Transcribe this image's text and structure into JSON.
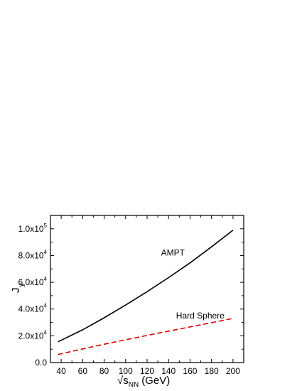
{
  "chart_data": {
    "type": "line",
    "xlabel": "√s",
    "xlabel_sub": "NN",
    "xlabel_unit": "(GeV)",
    "ylabel": "J",
    "ylabel_sub": "y",
    "xlim": [
      30,
      210
    ],
    "ylim": [
      0,
      110000
    ],
    "x_ticks": [
      40,
      60,
      80,
      100,
      120,
      140,
      160,
      180,
      200
    ],
    "x_tick_labels": [
      "40",
      "60",
      "80",
      "100",
      "120",
      "140",
      "160",
      "180",
      "200"
    ],
    "y_ticks": [
      0,
      20000,
      40000,
      60000,
      80000,
      100000
    ],
    "y_tick_labels": [
      {
        "mantissa": "0.0",
        "exp": ""
      },
      {
        "mantissa": "2.0x10",
        "exp": "4"
      },
      {
        "mantissa": "4.0x10",
        "exp": "4"
      },
      {
        "mantissa": "6.0x10",
        "exp": "4"
      },
      {
        "mantissa": "8.0x10",
        "exp": "4"
      },
      {
        "mantissa": "1.0x10",
        "exp": "5"
      }
    ],
    "grid": false,
    "series": [
      {
        "name": "AMPT",
        "color": "#000000",
        "dash": "solid",
        "x": [
          37,
          60,
          80,
          100,
          120,
          140,
          160,
          180,
          200
        ],
        "y": [
          15500,
          24500,
          33500,
          43000,
          53000,
          63500,
          74500,
          86500,
          99000
        ]
      },
      {
        "name": "Hard Sphere",
        "color": "#dd0000",
        "dash": "dashed",
        "x": [
          37,
          60,
          80,
          100,
          120,
          140,
          160,
          180,
          200
        ],
        "y": [
          6000,
          10200,
          13700,
          17000,
          20300,
          23500,
          26600,
          29800,
          33000
        ]
      }
    ],
    "annotations": [
      {
        "text": "AMPT",
        "x": 133,
        "y": 80000,
        "series": 0
      },
      {
        "text": "Hard Sphere",
        "x": 147,
        "y": 33000,
        "series": 1
      }
    ]
  }
}
